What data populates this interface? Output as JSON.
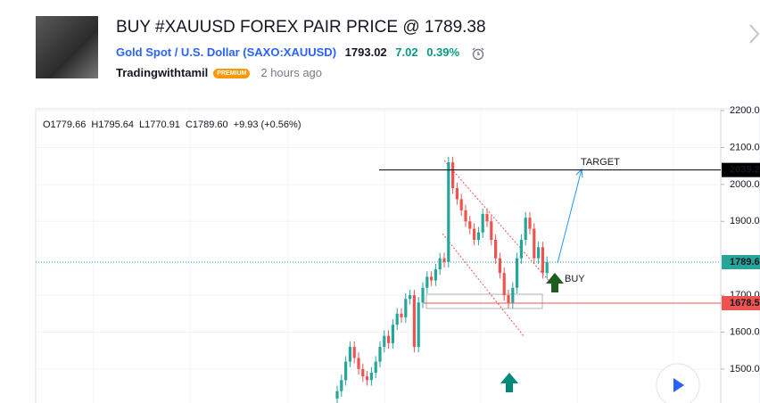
{
  "header": {
    "title": "BUY #XAUUSD FOREX PAIR PRICE @ 1789.38",
    "symbol_name": "Gold Spot / U.S. Dollar",
    "symbol_code": "(SAXO:XAUUSD)",
    "price": "1793.02",
    "change": "7.02",
    "change_pct": "0.39%",
    "author": "Tradingwithtamil",
    "badge": "PREMIUM",
    "time": "2 hours ago"
  },
  "chart_data": {
    "type": "candlestick",
    "legend": [
      "O1779.66",
      "H1795.64",
      "L1770.91",
      "C1789.60",
      "+9.93 (+0.56%)"
    ],
    "ylim": [
      1408,
      2205
    ],
    "yticks": [
      {
        "value": 2200,
        "label": "2200.0"
      },
      {
        "value": 2100,
        "label": "2100.0"
      },
      {
        "value": 2000,
        "label": "2000.0"
      },
      {
        "value": 1900,
        "label": "1900.0"
      },
      {
        "value": 1700,
        "label": "1700.0"
      },
      {
        "value": 1600,
        "label": "1600.0"
      },
      {
        "value": 1500,
        "label": "1500.0"
      }
    ],
    "grid": true,
    "up_color": "#26a69a",
    "down_color": "#ef5350",
    "open": [
      1420,
      1440,
      1470,
      1520,
      1560,
      1530,
      1500,
      1480,
      1470,
      1490,
      1520,
      1560,
      1590,
      1570,
      1620,
      1650,
      1640,
      1690,
      1700,
      1560,
      1680,
      1720,
      1750,
      1740,
      1770,
      1800,
      1790,
      2060,
      1990,
      1960,
      1930,
      1900,
      1880,
      1850,
      1870,
      1920,
      1900,
      1850,
      1800,
      1760,
      1700,
      1680,
      1720,
      1800,
      1850,
      1910,
      1880,
      1800,
      1830,
      1760
    ],
    "high": [
      1455,
      1485,
      1535,
      1575,
      1575,
      1545,
      1515,
      1495,
      1505,
      1535,
      1575,
      1605,
      1605,
      1635,
      1665,
      1665,
      1705,
      1715,
      1715,
      1695,
      1735,
      1765,
      1765,
      1785,
      1815,
      1815,
      2075,
      2075,
      2005,
      1975,
      1945,
      1915,
      1895,
      1885,
      1935,
      1935,
      1915,
      1865,
      1815,
      1775,
      1715,
      1735,
      1815,
      1865,
      1925,
      1925,
      1895,
      1845,
      1845,
      1805
    ],
    "low": [
      1405,
      1425,
      1455,
      1505,
      1515,
      1485,
      1465,
      1455,
      1455,
      1475,
      1505,
      1545,
      1555,
      1555,
      1605,
      1625,
      1625,
      1675,
      1545,
      1545,
      1665,
      1705,
      1725,
      1725,
      1755,
      1775,
      1775,
      1975,
      1945,
      1915,
      1885,
      1865,
      1835,
      1835,
      1855,
      1885,
      1835,
      1785,
      1745,
      1685,
      1665,
      1665,
      1705,
      1785,
      1835,
      1865,
      1785,
      1785,
      1745,
      1745
    ],
    "close": [
      1440,
      1470,
      1520,
      1560,
      1530,
      1500,
      1480,
      1470,
      1490,
      1520,
      1560,
      1590,
      1570,
      1620,
      1650,
      1640,
      1690,
      1700,
      1560,
      1680,
      1720,
      1750,
      1740,
      1770,
      1800,
      1790,
      2060,
      1990,
      1960,
      1930,
      1900,
      1880,
      1850,
      1870,
      1920,
      1900,
      1850,
      1800,
      1760,
      1700,
      1680,
      1720,
      1800,
      1850,
      1910,
      1880,
      1800,
      1830,
      1760,
      1790
    ],
    "levels": [
      {
        "value": 2039.2,
        "color": "#000000"
      },
      {
        "value": 1789.6,
        "color": "#26a69a"
      },
      {
        "value": 1678.5,
        "color": "#ef5350"
      }
    ],
    "annotations": [
      "TARGET",
      "BUY"
    ]
  }
}
